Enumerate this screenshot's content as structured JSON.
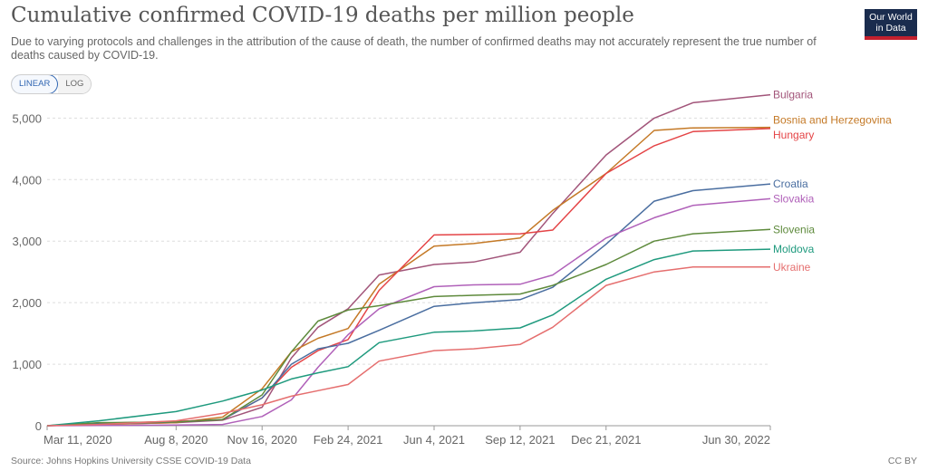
{
  "header": {
    "title": "Cumulative confirmed COVID-19 deaths per million people",
    "subtitle": "Due to varying protocols and challenges in the attribution of the cause of death, the number of confirmed deaths may not accurately represent the true number of deaths caused by COVID-19.",
    "logo_line1": "Our World",
    "logo_line2": "in Data"
  },
  "controls": {
    "linear_label": "LINEAR",
    "log_label": "LOG",
    "selected": "LINEAR"
  },
  "footer": {
    "source": "Source: Johns Hopkins University CSSE COVID-19 Data",
    "license": "CC BY"
  },
  "chart_data": {
    "type": "line",
    "x_ticks": [
      "Mar 11, 2020",
      "Aug 8, 2020",
      "Nov 16, 2020",
      "Feb 24, 2021",
      "Jun 4, 2021",
      "Sep 12, 2021",
      "Dec 21, 2021",
      "Jun 30, 2022"
    ],
    "x": [
      "2020-03-11",
      "2020-05-10",
      "2020-08-08",
      "2020-10-01",
      "2020-11-16",
      "2020-12-20",
      "2021-01-20",
      "2021-02-24",
      "2021-04-01",
      "2021-06-04",
      "2021-07-20",
      "2021-09-12",
      "2021-10-20",
      "2021-12-21",
      "2022-02-15",
      "2022-04-01",
      "2022-06-30"
    ],
    "y_ticks": [
      0,
      1000,
      2000,
      3000,
      4000,
      5000
    ],
    "ylim": [
      0,
      5300
    ],
    "grid": true,
    "legend": "right",
    "series": [
      {
        "name": "Bulgaria",
        "color": "#a2557a",
        "values": [
          0,
          20,
          50,
          90,
          300,
          1100,
          1600,
          1900,
          2450,
          2620,
          2660,
          2820,
          3450,
          4400,
          5000,
          5250,
          5380
        ]
      },
      {
        "name": "Bosnia and Herzegovina",
        "color": "#c47926",
        "values": [
          0,
          20,
          50,
          140,
          600,
          1200,
          1420,
          1580,
          2300,
          2920,
          2960,
          3050,
          3500,
          4100,
          4800,
          4840,
          4850
        ]
      },
      {
        "name": "Hungary",
        "color": "#e44446",
        "values": [
          0,
          40,
          70,
          100,
          450,
          950,
          1220,
          1400,
          2200,
          3100,
          3110,
          3120,
          3180,
          4100,
          4550,
          4780,
          4830
        ]
      },
      {
        "name": "Croatia",
        "color": "#4a6ea0",
        "values": [
          0,
          30,
          60,
          100,
          450,
          1000,
          1250,
          1340,
          1550,
          1940,
          2000,
          2050,
          2250,
          2950,
          3650,
          3820,
          3930
        ]
      },
      {
        "name": "Slovakia",
        "color": "#b061b9",
        "values": [
          0,
          5,
          10,
          20,
          150,
          420,
          950,
          1480,
          1900,
          2260,
          2290,
          2300,
          2450,
          3050,
          3380,
          3580,
          3690
        ]
      },
      {
        "name": "Slovenia",
        "color": "#5e8a3c",
        "values": [
          0,
          50,
          60,
          100,
          500,
          1200,
          1700,
          1880,
          1950,
          2100,
          2120,
          2140,
          2280,
          2620,
          3000,
          3120,
          3190
        ]
      },
      {
        "name": "Moldova",
        "color": "#1f9a7e",
        "values": [
          0,
          80,
          230,
          400,
          580,
          760,
          860,
          960,
          1350,
          1520,
          1540,
          1590,
          1800,
          2380,
          2700,
          2840,
          2870
        ]
      },
      {
        "name": "Ukraine",
        "color": "#e56e6e",
        "values": [
          0,
          20,
          80,
          200,
          340,
          480,
          570,
          670,
          1050,
          1220,
          1250,
          1320,
          1600,
          2280,
          2500,
          2580,
          2580
        ]
      }
    ]
  }
}
